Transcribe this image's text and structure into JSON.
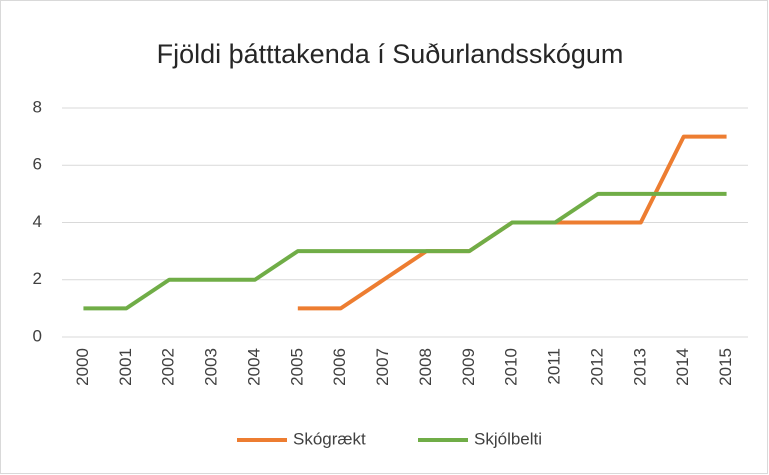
{
  "chart_data": {
    "type": "line",
    "title": "Fjöldi þátttakenda í Suðurlandsskógum",
    "categories": [
      "2000",
      "2001",
      "2002",
      "2003",
      "2004",
      "2005",
      "2006",
      "2007",
      "2008",
      "2009",
      "2010",
      "2011",
      "2012",
      "2013",
      "2014",
      "2015"
    ],
    "series": [
      {
        "name": "Skógrækt",
        "color": "#ed7d31",
        "values": [
          null,
          null,
          null,
          null,
          null,
          1,
          1,
          2,
          3,
          3,
          4,
          4,
          4,
          4,
          7,
          7
        ]
      },
      {
        "name": "Skjólbelti",
        "color": "#70ad47",
        "values": [
          1,
          1,
          2,
          2,
          2,
          3,
          3,
          3,
          3,
          3,
          4,
          4,
          5,
          5,
          5,
          5
        ]
      }
    ],
    "ylim": [
      0,
      8
    ],
    "yticks": [
      0,
      2,
      4,
      6,
      8
    ],
    "grid": true,
    "legend": "bottom"
  }
}
